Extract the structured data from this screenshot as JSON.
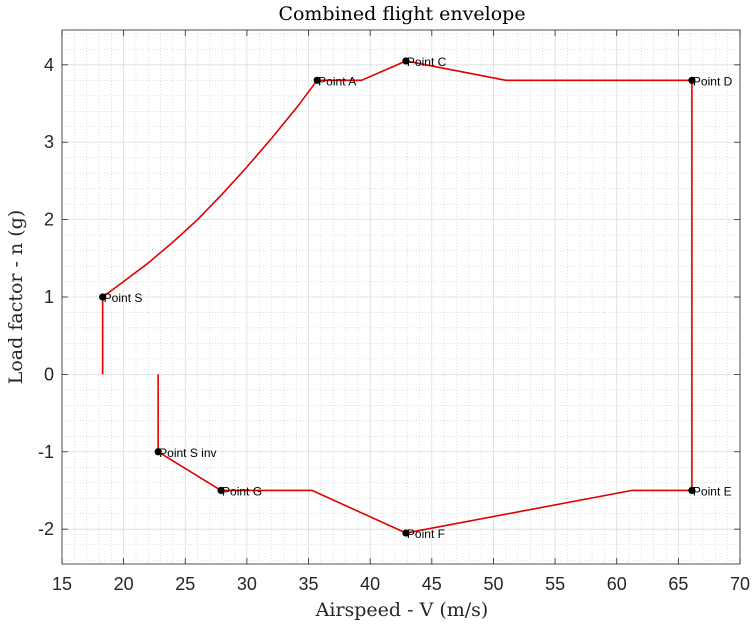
{
  "chart_data": {
    "type": "line",
    "title": "Combined flight envelope",
    "xlabel": "Airspeed - V (m/s)",
    "ylabel": "Load factor - n (g)",
    "xlim": [
      15,
      70
    ],
    "ylim": [
      -2.45,
      4.45
    ],
    "xticks": [
      15,
      20,
      25,
      30,
      35,
      40,
      45,
      50,
      55,
      60,
      65,
      70
    ],
    "yticks": [
      -2,
      -1,
      0,
      1,
      2,
      3,
      4
    ],
    "grid": true,
    "minor_grid": true,
    "line_color": "#e00000",
    "marker_color": "#000000",
    "series": [
      {
        "values": [
          [
            18.3,
            0
          ],
          [
            18.3,
            1.0
          ],
          [
            20.0,
            1.2
          ],
          [
            22.0,
            1.44
          ],
          [
            24.0,
            1.71
          ],
          [
            26.0,
            2.0
          ],
          [
            28.0,
            2.33
          ],
          [
            30.0,
            2.68
          ],
          [
            32.0,
            3.05
          ],
          [
            34.0,
            3.44
          ],
          [
            35.7,
            3.8
          ],
          [
            39.3,
            3.8
          ],
          [
            42.9,
            4.05
          ],
          [
            51.0,
            3.8
          ],
          [
            66.1,
            3.8
          ],
          [
            66.1,
            -1.5
          ],
          [
            61.2,
            -1.5
          ],
          [
            42.9,
            -2.05
          ],
          [
            35.3,
            -1.5
          ],
          [
            27.9,
            -1.5
          ],
          [
            22.8,
            -1.0
          ],
          [
            22.8,
            0
          ]
        ]
      }
    ],
    "points": [
      {
        "label": "Point A",
        "x": 35.7,
        "y": 3.8
      },
      {
        "label": "Point C",
        "x": 42.9,
        "y": 4.05
      },
      {
        "label": "Point D",
        "x": 66.1,
        "y": 3.8
      },
      {
        "label": "Point S",
        "x": 18.3,
        "y": 1.0
      },
      {
        "label": "Point S inv",
        "x": 22.8,
        "y": -1.0
      },
      {
        "label": "Point G",
        "x": 27.9,
        "y": -1.5
      },
      {
        "label": "Point F",
        "x": 42.9,
        "y": -2.05
      },
      {
        "label": "Point E",
        "x": 66.1,
        "y": -1.5
      }
    ]
  }
}
